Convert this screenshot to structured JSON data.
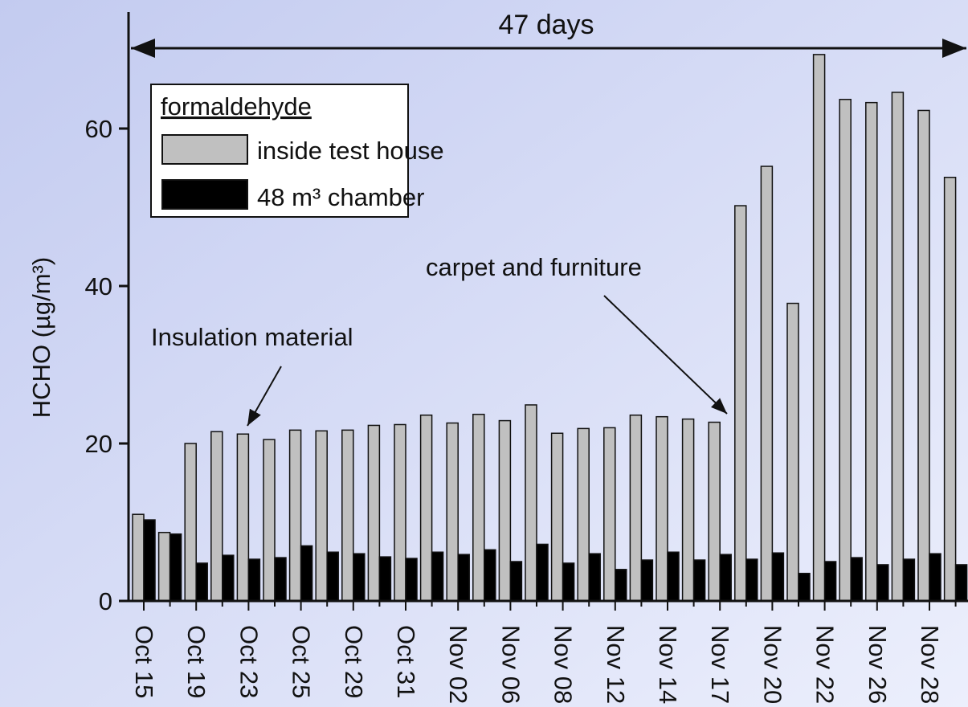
{
  "chart_data": {
    "type": "bar",
    "y_label": "HCHO (µg/m³)",
    "legend_title": "formaldehyde",
    "categories": [
      "Oct 15",
      null,
      "Oct 19",
      null,
      "Oct 23",
      null,
      "Oct 25",
      null,
      "Oct 29",
      null,
      "Oct 31",
      null,
      "Nov 02",
      null,
      "Nov 06",
      null,
      "Nov 08",
      null,
      "Nov 12",
      null,
      "Nov 14",
      null,
      "Nov 17",
      null,
      "Nov 20",
      null,
      "Nov 22",
      null,
      "Nov 26",
      null,
      "Nov 28",
      null
    ],
    "series": [
      {
        "name": "inside test house",
        "color": "#c0c0c0",
        "values": [
          11,
          8.7,
          20,
          21.5,
          21.2,
          20.5,
          21.7,
          21.6,
          21.7,
          22.3,
          22.4,
          23.6,
          22.6,
          23.7,
          22.9,
          24.9,
          21.3,
          21.9,
          22,
          23.6,
          23.4,
          23.1,
          22.7,
          50.2,
          55.2,
          37.8,
          69.4,
          63.7,
          63.3,
          64.6,
          62.3,
          53.8
        ]
      },
      {
        "name": "48 m³ chamber",
        "color": "#000000",
        "values": [
          10.3,
          8.5,
          4.8,
          5.8,
          5.3,
          5.5,
          7,
          6.2,
          6,
          5.6,
          5.4,
          6.2,
          5.9,
          6.5,
          5,
          7.2,
          4.8,
          6,
          4,
          5.2,
          6.2,
          5.2,
          5.9,
          5.3,
          6.1,
          3.5,
          5,
          5.5,
          4.6,
          5.3,
          6,
          4.6
        ]
      }
    ],
    "ylim": [
      0,
      75
    ],
    "yticks": [
      0,
      20,
      40,
      60
    ],
    "legend_position": "upper left",
    "annotations": [
      "47 days",
      "Insulation material",
      "carpet and furniture"
    ]
  }
}
